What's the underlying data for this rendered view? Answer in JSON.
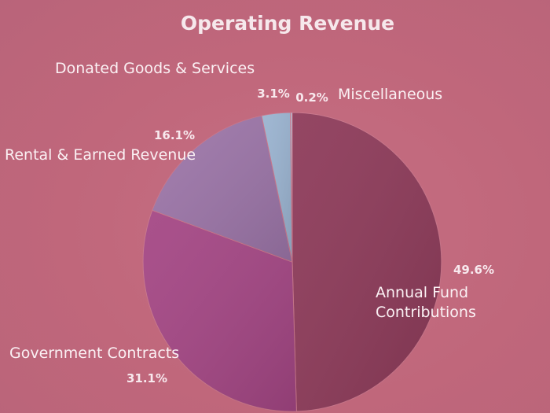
{
  "chart_data": {
    "type": "pie",
    "title": "Operating Revenue",
    "start_angle_deg": 0,
    "direction": "clockwise",
    "slices": [
      {
        "label_lines": [
          "Annual Fund",
          "Contributions"
        ],
        "value": 49.6,
        "pct_label": "49.6%",
        "color": "#8d3a59"
      },
      {
        "label_lines": [
          "Government Contracts"
        ],
        "value": 31.1,
        "pct_label": "31.1%",
        "color": "#a44684"
      },
      {
        "label_lines": [
          "Rental & Earned Revenue"
        ],
        "value": 16.1,
        "pct_label": "16.1%",
        "color": "#9c75a8"
      },
      {
        "label_lines": [
          "Donated Goods & Services"
        ],
        "value": 3.1,
        "pct_label": "3.1%",
        "color": "#9ab3d0"
      },
      {
        "label_lines": [
          "Miscellaneous"
        ],
        "value": 0.2,
        "pct_label": "0.2%",
        "color": "#b2c4dc"
      }
    ]
  }
}
